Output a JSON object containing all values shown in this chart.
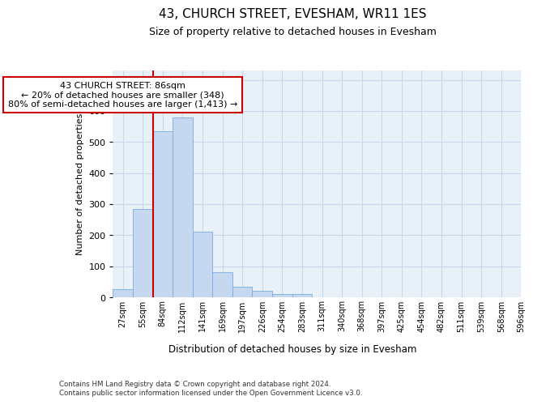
{
  "title": "43, CHURCH STREET, EVESHAM, WR11 1ES",
  "subtitle": "Size of property relative to detached houses in Evesham",
  "xlabel": "Distribution of detached houses by size in Evesham",
  "ylabel": "Number of detached properties",
  "footer_line1": "Contains HM Land Registry data © Crown copyright and database right 2024.",
  "footer_line2": "Contains public sector information licensed under the Open Government Licence v3.0.",
  "bin_labels": [
    "27sqm",
    "55sqm",
    "84sqm",
    "112sqm",
    "141sqm",
    "169sqm",
    "197sqm",
    "226sqm",
    "254sqm",
    "283sqm",
    "311sqm",
    "340sqm",
    "368sqm",
    "397sqm",
    "425sqm",
    "454sqm",
    "482sqm",
    "511sqm",
    "539sqm",
    "568sqm",
    "596sqm"
  ],
  "bar_heights": [
    25,
    285,
    535,
    580,
    210,
    80,
    35,
    22,
    10,
    10,
    0,
    0,
    0,
    0,
    0,
    0,
    0,
    0,
    0,
    0
  ],
  "bar_color": "#c5d8f0",
  "bar_edge_color": "#7aabe0",
  "property_bin_index": 2,
  "red_line_color": "#cc0000",
  "annotation_text": "43 CHURCH STREET: 86sqm\n← 20% of detached houses are smaller (348)\n80% of semi-detached houses are larger (1,413) →",
  "annotation_box_facecolor": "#ffffff",
  "annotation_box_edgecolor": "#cc0000",
  "ylim": [
    0,
    730
  ],
  "yticks": [
    0,
    100,
    200,
    300,
    400,
    500,
    600,
    700
  ],
  "grid_color": "#c8d8ec",
  "background_color": "#ffffff",
  "plot_bg_color": "#e8f0f8"
}
